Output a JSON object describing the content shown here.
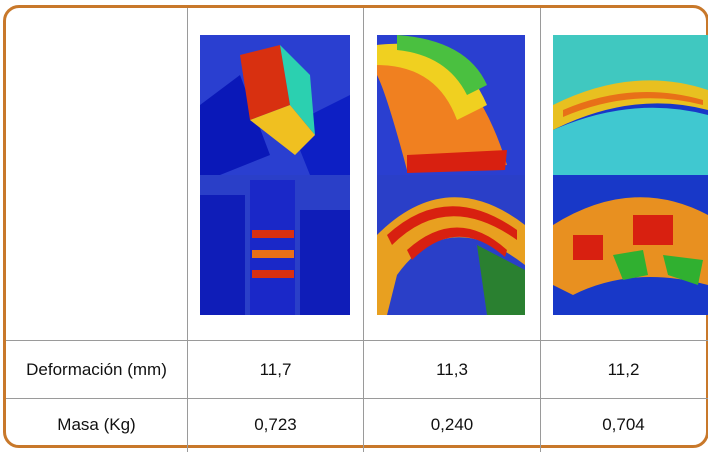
{
  "table": {
    "rows": [
      [
        "Deformación (mm)",
        "11,7",
        "11,3",
        "11,2"
      ],
      [
        "Masa (Kg)",
        "0,723",
        "0,240",
        "0,704"
      ]
    ]
  }
}
